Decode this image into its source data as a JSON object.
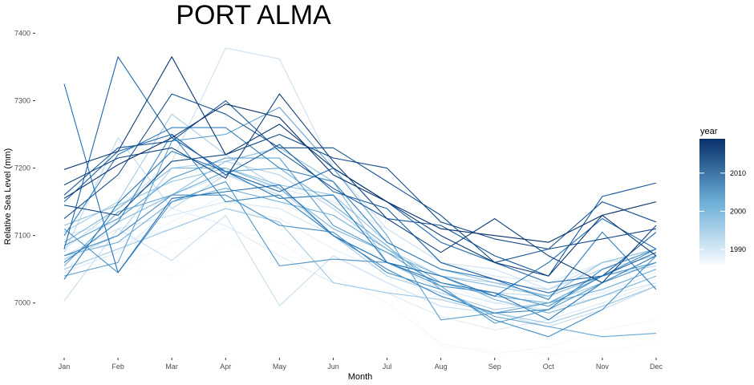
{
  "chart_data": {
    "type": "line",
    "title": "PORT ALMA",
    "xlabel": "Month",
    "ylabel": "Relative Sea Level (mm)",
    "categories": [
      "Jan",
      "Feb",
      "Mar",
      "Apr",
      "May",
      "Jun",
      "Jul",
      "Aug",
      "Sep",
      "Oct",
      "Nov",
      "Dec"
    ],
    "ylim": [
      6920,
      7410
    ],
    "yticks": [
      7000,
      7100,
      7200,
      7300,
      7400
    ],
    "grid": false,
    "legend": {
      "title": "year",
      "position": "right",
      "type": "colorbar",
      "range": [
        1986,
        2019
      ],
      "ticks": [
        1990,
        2000,
        2010
      ],
      "low_color": "#f7fbff",
      "high_color": "#08306b"
    },
    "series": [
      {
        "year": 1986,
        "values": [
          7060,
          7055,
          7040,
          7090,
          7070,
          7060,
          7020,
          6935,
          6930,
          6925,
          6930,
          6940
        ]
      },
      {
        "year": 1987,
        "values": [
          7040,
          7050,
          7090,
          7110,
          7090,
          7040,
          7000,
          6940,
          6925,
          6935,
          6960,
          6975
        ]
      },
      {
        "year": 1988,
        "values": [
          7095,
          7080,
          7120,
          7160,
          7150,
          7110,
          7060,
          7030,
          7000,
          7010,
          7020,
          7050
        ]
      },
      {
        "year": 1989,
        "values": [
          7065,
          7090,
          7110,
          7140,
          7125,
          7080,
          7045,
          7010,
          6985,
          7000,
          7015,
          7045
        ]
      },
      {
        "year": 1990,
        "values": [
          7045,
          7075,
          7140,
          7115,
          7070,
          7030,
          7015,
          6980,
          6960,
          6975,
          7000,
          7030
        ]
      },
      {
        "year": 1991,
        "values": [
          7100,
          7120,
          7160,
          7190,
          7170,
          7150,
          7110,
          7060,
          7040,
          7030,
          7060,
          7080
        ]
      },
      {
        "year": 1992,
        "values": [
          7070,
          7110,
          7130,
          7150,
          7140,
          7100,
          7060,
          7020,
          7000,
          6990,
          7010,
          7030
        ]
      },
      {
        "year": 1993,
        "values": [
          7080,
          7140,
          7210,
          7378,
          7362,
          7200,
          7110,
          7060,
          7050,
          7020,
          7060,
          7070
        ]
      },
      {
        "year": 1994,
        "values": [
          7003,
          7110,
          7063,
          7130,
          6996,
          7070,
          7030,
          6995,
          6985,
          6965,
          6990,
          7025
        ]
      },
      {
        "year": 1995,
        "values": [
          7075,
          7245,
          7140,
          7190,
          7160,
          7100,
          7060,
          7025,
          7015,
          7010,
          7040,
          7055
        ]
      },
      {
        "year": 1996,
        "values": [
          7065,
          7100,
          7200,
          7210,
          7190,
          7140,
          7080,
          7040,
          7030,
          7020,
          7050,
          7070
        ]
      },
      {
        "year": 1997,
        "values": [
          7105,
          7150,
          7280,
          7220,
          7170,
          7100,
          7040,
          7015,
          6990,
          7000,
          7030,
          7060
        ]
      },
      {
        "year": 1998,
        "values": [
          7050,
          7080,
          7110,
          7140,
          7120,
          7030,
          7015,
          7005,
          6985,
          6970,
          6995,
          7025
        ]
      },
      {
        "year": 1999,
        "values": [
          7115,
          7145,
          7180,
          7200,
          7175,
          7160,
          7090,
          7050,
          7030,
          7010,
          7040,
          7060
        ]
      },
      {
        "year": 2000,
        "values": [
          7060,
          7120,
          7160,
          7210,
          7230,
          7180,
          7060,
          7040,
          7025,
          7010,
          7060,
          7080
        ]
      },
      {
        "year": 2001,
        "values": [
          7090,
          7140,
          7200,
          7200,
          7170,
          7110,
          7075,
          7040,
          7005,
          6985,
          7010,
          7040
        ]
      },
      {
        "year": 2002,
        "values": [
          7070,
          7090,
          7150,
          7170,
          7150,
          7130,
          7080,
          7030,
          7010,
          7000,
          7020,
          7050
        ]
      },
      {
        "year": 2003,
        "values": [
          7055,
          7135,
          7160,
          7195,
          7200,
          7145,
          7085,
          7020,
          6980,
          6965,
          6950,
          6955
        ]
      },
      {
        "year": 2004,
        "values": [
          7040,
          7060,
          7240,
          7250,
          7290,
          7200,
          7100,
          6975,
          6985,
          7000,
          7040,
          7060
        ]
      },
      {
        "year": 2005,
        "values": [
          7085,
          7125,
          7185,
          7215,
          7215,
          7115,
          7075,
          7025,
          6970,
          6990,
          7030,
          7060
        ]
      },
      {
        "year": 2006,
        "values": [
          7110,
          7045,
          7150,
          7180,
          7055,
          7065,
          7060,
          7025,
          7015,
          6995,
          7040,
          7080
        ]
      },
      {
        "year": 2007,
        "values": [
          7070,
          7100,
          7160,
          7160,
          7115,
          7105,
          7045,
          7020,
          6975,
          6950,
          6990,
          7070
        ]
      },
      {
        "year": 2008,
        "values": [
          7060,
          7120,
          7250,
          7150,
          7160,
          7100,
          7050,
          7010,
          6985,
          6990,
          7050,
          7080
        ]
      },
      {
        "year": 2009,
        "values": [
          7100,
          7220,
          7260,
          7260,
          7200,
          7180,
          7090,
          7050,
          7035,
          7005,
          7105,
          7020
        ]
      },
      {
        "year": 2010,
        "values": [
          7035,
          7148,
          7225,
          7195,
          7155,
          7160,
          7060,
          7030,
          7015,
          6975,
          7030,
          7070
        ]
      },
      {
        "year": 2011,
        "values": [
          7325,
          7045,
          7155,
          7165,
          7175,
          7100,
          7060,
          7040,
          7010,
          7060,
          7125,
          7080
        ]
      },
      {
        "year": 2012,
        "values": [
          7080,
          7365,
          7245,
          7195,
          7165,
          7200,
          7150,
          7090,
          7060,
          7030,
          7040,
          7075
        ]
      },
      {
        "year": 2013,
        "values": [
          7150,
          7225,
          7250,
          7190,
          7235,
          7165,
          7140,
          7060,
          7035,
          7015,
          7040,
          7105
        ]
      },
      {
        "year": 2014,
        "values": [
          7160,
          7230,
          7240,
          7300,
          7225,
          7170,
          7125,
          7115,
          7070,
          7040,
          7158,
          7178
        ]
      },
      {
        "year": 2015,
        "values": [
          7125,
          7190,
          7310,
          7280,
          7230,
          7230,
          7180,
          7130,
          7060,
          7080,
          7150,
          7120
        ]
      },
      {
        "year": 2016,
        "values": [
          7145,
          7130,
          7210,
          7220,
          7250,
          7215,
          7200,
          7120,
          7095,
          7080,
          7095,
          7110
        ]
      },
      {
        "year": 2017,
        "values": [
          7175,
          7215,
          7230,
          7185,
          7310,
          7210,
          7125,
          7075,
          7125,
          7070,
          7030,
          7115
        ]
      },
      {
        "year": 2018,
        "values": [
          7198,
          7225,
          7365,
          7220,
          7265,
          7200,
          7150,
          7100,
          7060,
          7040,
          7130,
          7070
        ]
      },
      {
        "year": 2019,
        "values": [
          7155,
          7205,
          7245,
          7295,
          7275,
          7190,
          7150,
          7110,
          7100,
          7090,
          7130,
          7150
        ]
      }
    ]
  }
}
